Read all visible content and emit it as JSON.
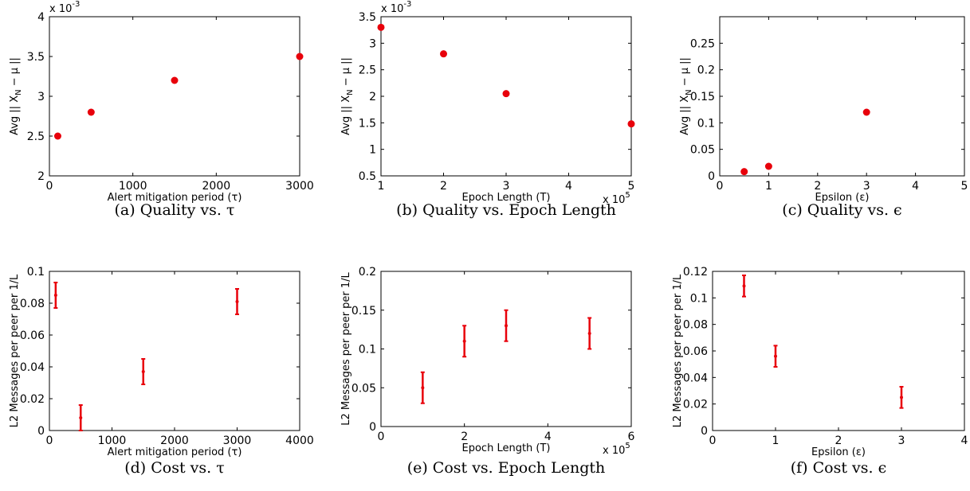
{
  "chart_data": [
    {
      "id": "a",
      "type": "scatter",
      "caption": "(a) Quality vs. τ",
      "xlabel": "Alert mitigation period (τ)",
      "ylabel": "Avg || X_N − μ ||",
      "y_multiplier": "x 10^-3",
      "x_multiplier": "",
      "xlim": [
        0,
        3000
      ],
      "ylim": [
        2,
        4
      ],
      "xticks": [
        "0",
        "1000",
        "2000",
        "3000"
      ],
      "yticks": [
        "2",
        "2.5",
        "3",
        "3.5",
        "4"
      ],
      "x": [
        100,
        500,
        1500,
        3000
      ],
      "y": [
        2.5,
        2.8,
        3.2,
        3.5
      ]
    },
    {
      "id": "b",
      "type": "scatter",
      "caption": "(b) Quality vs. Epoch Length",
      "xlabel": "Epoch Length (T)",
      "ylabel": "Avg || X_N − μ ||",
      "y_multiplier": "x 10^-3",
      "x_multiplier": "x 10^5",
      "xlim": [
        1,
        5
      ],
      "ylim": [
        0.5,
        3.5
      ],
      "xticks": [
        "1",
        "2",
        "3",
        "4",
        "5"
      ],
      "yticks": [
        "0.5",
        "1",
        "1.5",
        "2",
        "2.5",
        "3",
        "3.5"
      ],
      "x": [
        1,
        2,
        3,
        5
      ],
      "y": [
        3.3,
        2.8,
        2.05,
        1.48
      ]
    },
    {
      "id": "c",
      "type": "scatter",
      "caption": "(c) Quality vs. ϵ",
      "xlabel": "Epsilon (ε)",
      "ylabel": "Avg || X_N − μ ||",
      "y_multiplier": "",
      "x_multiplier": "",
      "xlim": [
        0,
        5
      ],
      "ylim": [
        0,
        0.3
      ],
      "xticks": [
        "0",
        "1",
        "2",
        "3",
        "4",
        "5"
      ],
      "yticks": [
        "0",
        "0.05",
        "0.1",
        "0.15",
        "0.2",
        "0.25"
      ],
      "x": [
        0.5,
        1,
        3
      ],
      "y": [
        0.008,
        0.018,
        0.12
      ]
    },
    {
      "id": "d",
      "type": "errorbar",
      "caption": "(d) Cost vs. τ",
      "xlabel": "Alert mitigation period (τ)",
      "ylabel": "L2 Messages per peer per 1/L",
      "y_multiplier": "",
      "x_multiplier": "",
      "xlim": [
        0,
        4000
      ],
      "ylim": [
        0,
        0.1
      ],
      "xticks": [
        "0",
        "1000",
        "2000",
        "3000",
        "4000"
      ],
      "yticks": [
        "0",
        "0.02",
        "0.04",
        "0.06",
        "0.08",
        "0.1"
      ],
      "x": [
        100,
        500,
        1500,
        3000
      ],
      "y": [
        0.085,
        0.008,
        0.037,
        0.081
      ],
      "low": [
        0.077,
        0.0,
        0.029,
        0.073
      ],
      "high": [
        0.093,
        0.016,
        0.045,
        0.089
      ]
    },
    {
      "id": "e",
      "type": "errorbar",
      "caption": "(e) Cost vs. Epoch Length",
      "xlabel": "Epoch Length (T)",
      "ylabel": "L2 Messages per peer per 1/L",
      "y_multiplier": "",
      "x_multiplier": "x 10^5",
      "xlim": [
        0,
        6
      ],
      "ylim": [
        0,
        0.2
      ],
      "xticks": [
        "0",
        "2",
        "4",
        "6"
      ],
      "yticks": [
        "0",
        "0.05",
        "0.1",
        "0.15",
        "0.2"
      ],
      "x": [
        1,
        2,
        3,
        5
      ],
      "y": [
        0.05,
        0.11,
        0.13,
        0.12
      ],
      "low": [
        0.03,
        0.09,
        0.11,
        0.1
      ],
      "high": [
        0.07,
        0.13,
        0.15,
        0.14
      ]
    },
    {
      "id": "f",
      "type": "errorbar",
      "caption": "(f) Cost vs. ϵ",
      "xlabel": "Epsilon (ε)",
      "ylabel": "L2 Messages per peer per 1/L",
      "y_multiplier": "",
      "x_multiplier": "",
      "xlim": [
        0,
        4
      ],
      "ylim": [
        0,
        0.12
      ],
      "xticks": [
        "0",
        "1",
        "2",
        "3",
        "4"
      ],
      "yticks": [
        "0",
        "0.02",
        "0.04",
        "0.06",
        "0.08",
        "0.1",
        "0.12"
      ],
      "x": [
        0.5,
        1,
        3
      ],
      "y": [
        0.109,
        0.056,
        0.025
      ],
      "low": [
        0.101,
        0.048,
        0.017
      ],
      "high": [
        0.117,
        0.064,
        0.033
      ]
    }
  ],
  "colors": {
    "marker": "#e8000b",
    "axis": "#000000"
  }
}
